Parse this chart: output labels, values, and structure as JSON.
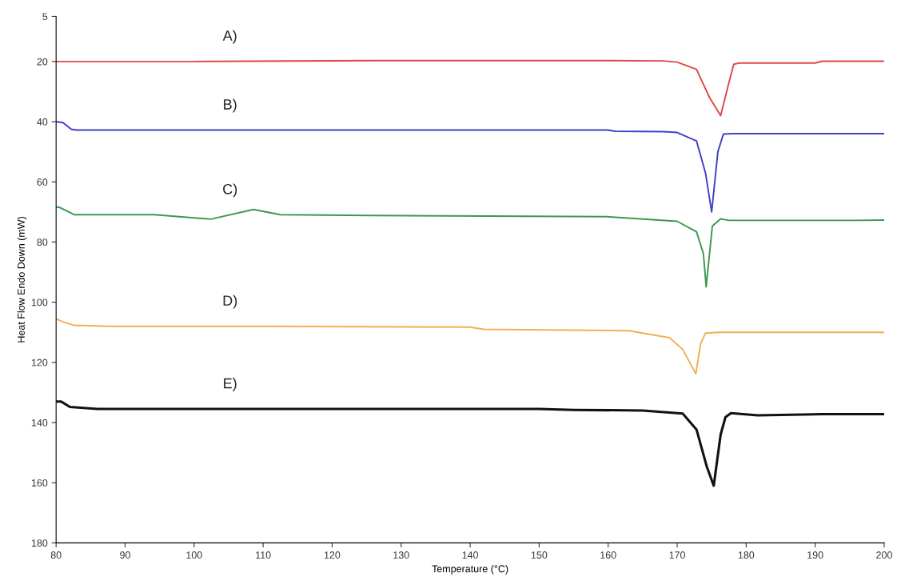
{
  "chart_data": {
    "type": "line",
    "xlabel": "Temperature (°C)",
    "ylabel": "Heat Flow Endo Down (mW)",
    "xlim": [
      80,
      200
    ],
    "xticks": [
      80,
      90,
      100,
      110,
      120,
      130,
      140,
      150,
      160,
      170,
      180,
      190,
      200
    ],
    "ylim": [
      180,
      5
    ],
    "yticks": [
      5,
      20,
      40,
      60,
      80,
      100,
      120,
      140,
      160,
      180
    ],
    "grid": false,
    "legend": false,
    "marker": "none",
    "line_style": "solid",
    "series": [
      {
        "color": "#e04848",
        "x": [
          80,
          100,
          126,
          160,
          168,
          170,
          172.8,
          174.7,
          176.3,
          177.5,
          178.2,
          179,
          190,
          191,
          200
        ],
        "values": [
          20,
          20,
          19.7,
          19.7,
          19.8,
          20.2,
          22.6,
          32,
          38,
          27,
          20.9,
          20.5,
          20.5,
          19.9,
          19.9
        ]
      },
      {
        "color": "#4040c8",
        "x": [
          80,
          81,
          82.2,
          83,
          120,
          160,
          161,
          168,
          170,
          172.8,
          174.1,
          175,
          175.9,
          176.7,
          178,
          200
        ],
        "values": [
          40,
          40.3,
          42.5,
          42.8,
          42.8,
          42.8,
          43.2,
          43.3,
          43.6,
          46.4,
          57,
          70,
          50,
          44.1,
          44,
          44
        ]
      },
      {
        "color": "#3a9a4a",
        "x": [
          80,
          80.5,
          82.6,
          94.2,
          102.4,
          108.6,
          112.5,
          125.4,
          160,
          170,
          172.8,
          173.8,
          174.2,
          175.1,
          176.3,
          177.5,
          196.1,
          200
        ],
        "values": [
          68.3,
          68.5,
          70.9,
          70.9,
          72.4,
          69.2,
          70.9,
          71.2,
          71.6,
          73.1,
          76.6,
          83.8,
          94.9,
          74.7,
          72.3,
          72.8,
          72.8,
          72.7
        ]
      },
      {
        "color": "#f0b050",
        "x": [
          80,
          81,
          82.6,
          88,
          110,
          140,
          142,
          163,
          168.9,
          170.8,
          172.7,
          173.4,
          174.1,
          176,
          200
        ],
        "values": [
          105.5,
          106.5,
          107.7,
          108,
          108,
          108.3,
          109,
          109.5,
          111.8,
          115.7,
          123.8,
          113.8,
          110.3,
          110,
          110
        ]
      },
      {
        "color": "#111111",
        "x": [
          80,
          80.7,
          82,
          86,
          150,
          155,
          165,
          170.8,
          172.8,
          174.3,
          175.3,
          176.3,
          177,
          177.8,
          181.7,
          191,
          200
        ],
        "values": [
          133,
          133,
          134.8,
          135.5,
          135.5,
          135.8,
          136,
          137,
          142.3,
          154.7,
          161,
          144,
          138.2,
          136.9,
          137.6,
          137.2,
          137.2
        ]
      }
    ],
    "annotations": [
      "A)",
      "B)",
      "C)",
      "D)",
      "E)"
    ]
  }
}
